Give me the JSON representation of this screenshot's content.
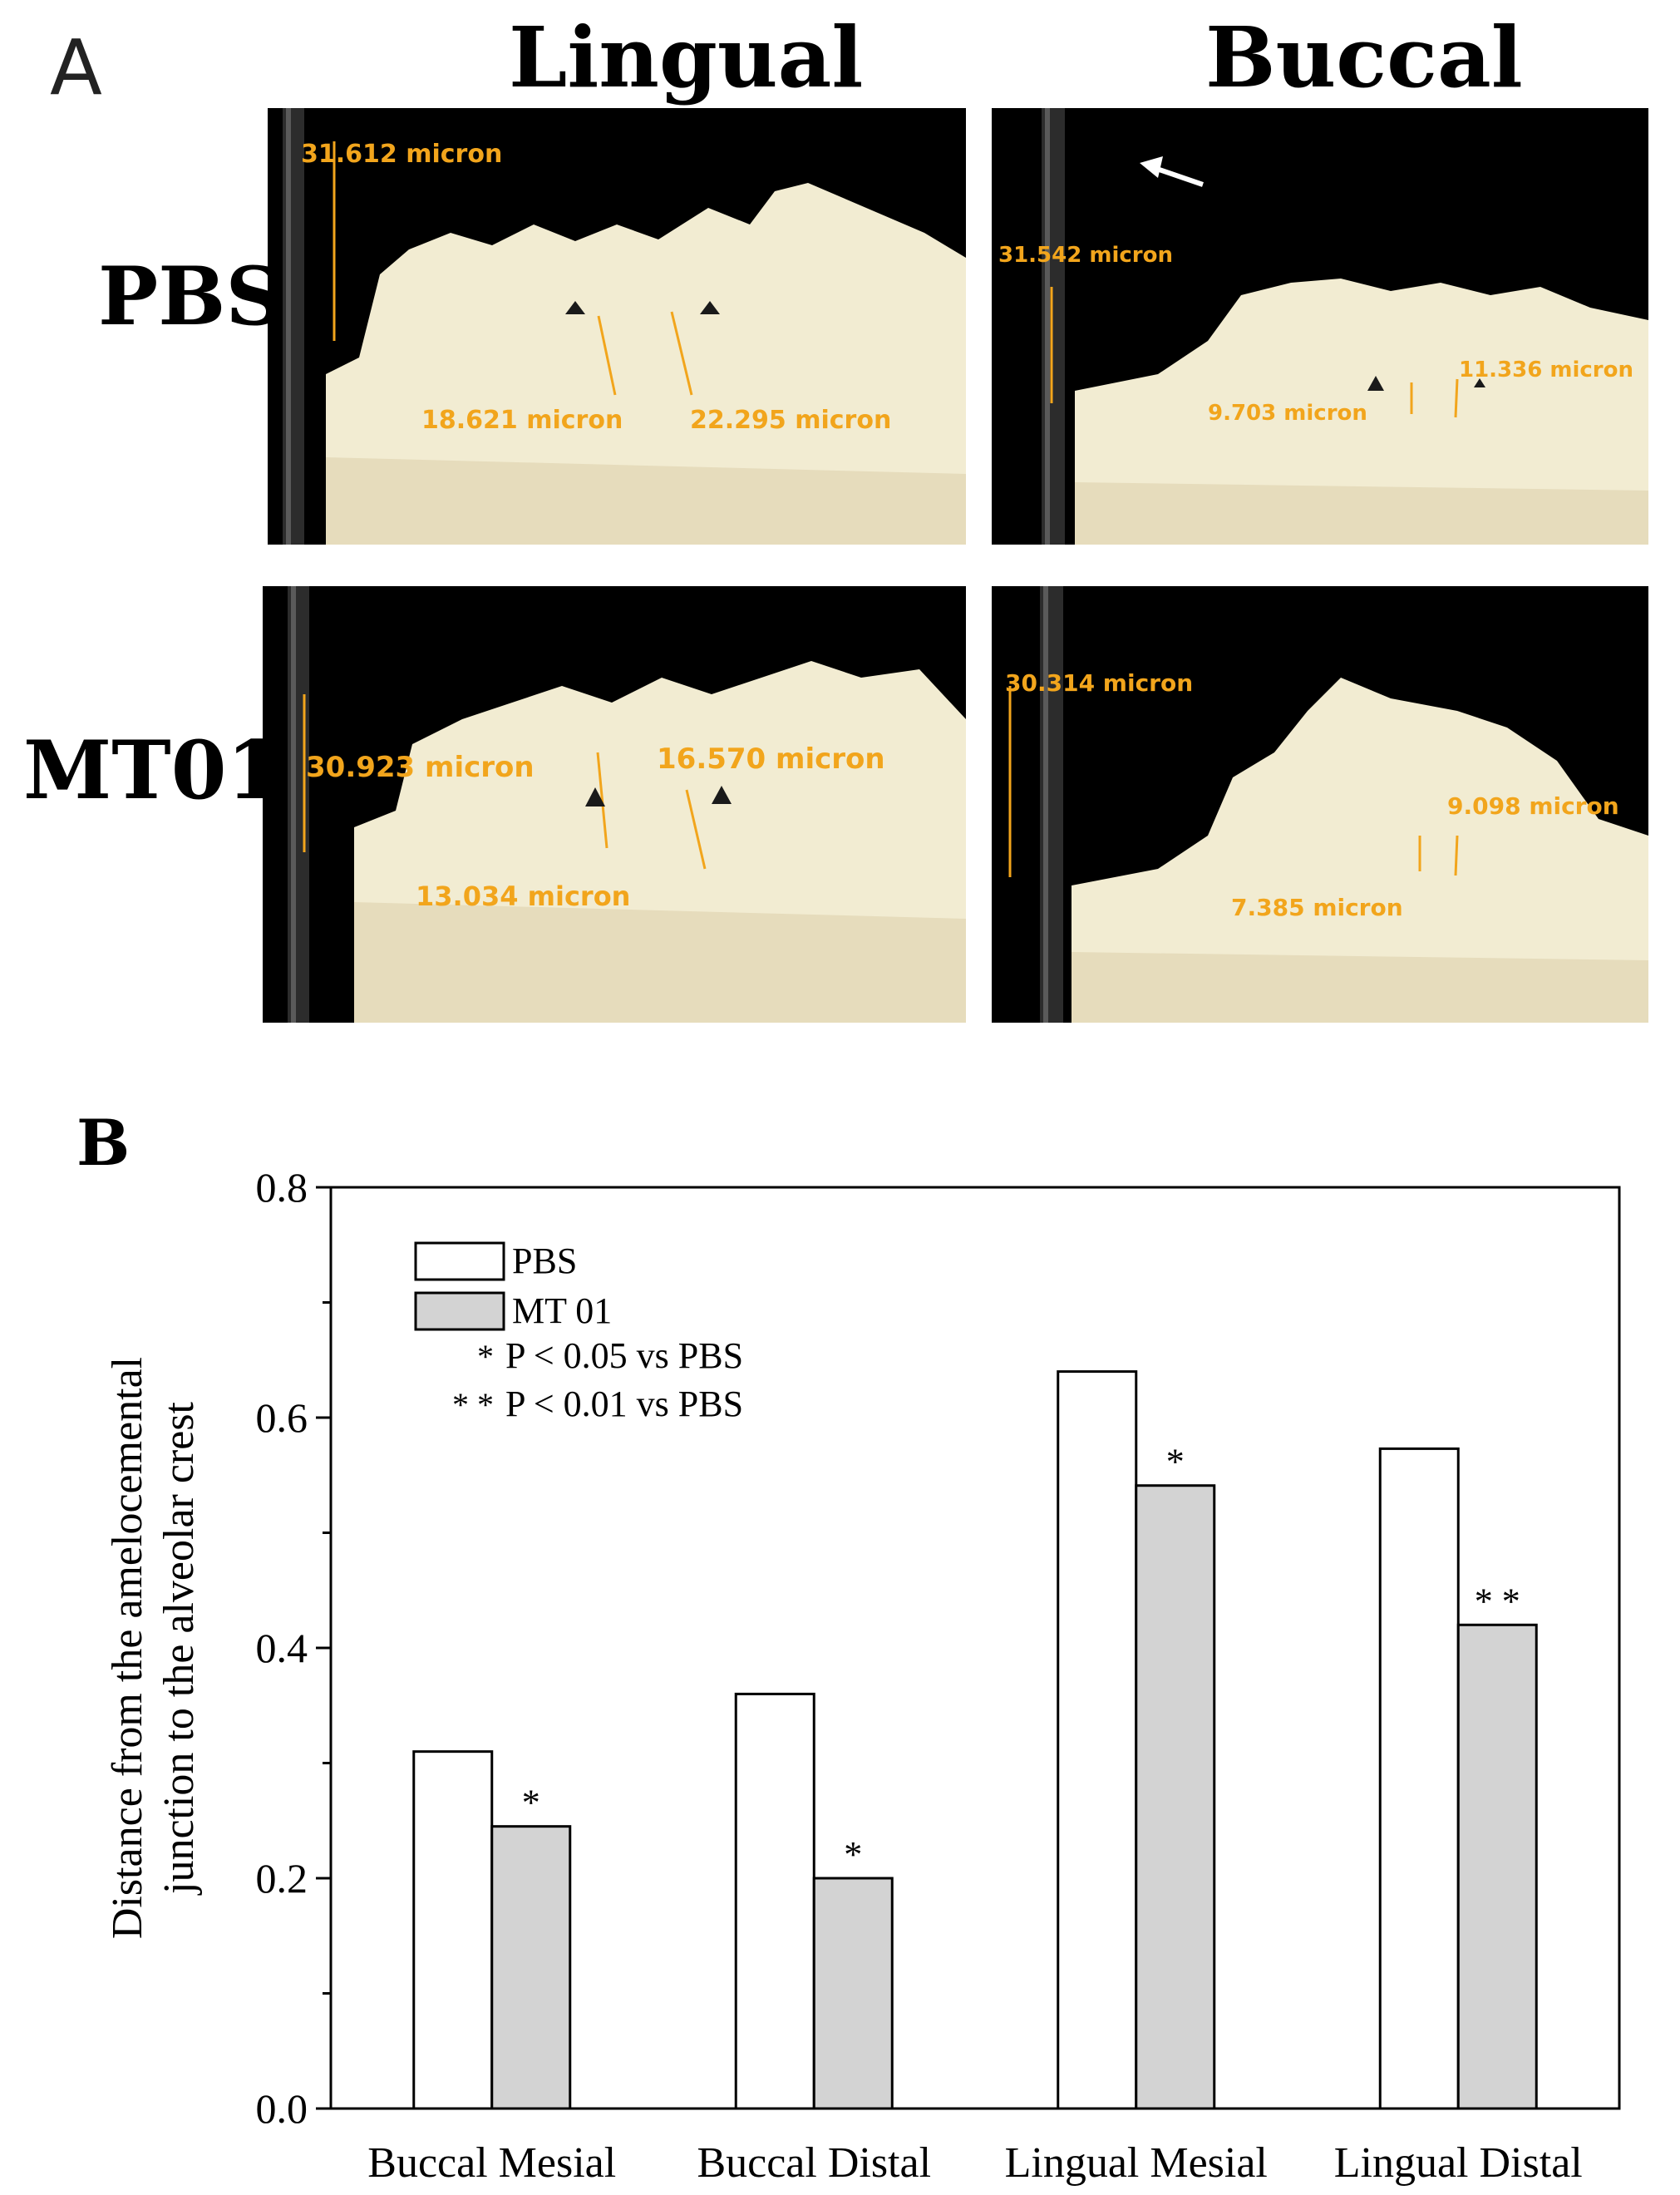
{
  "panel_a": {
    "letter": "A",
    "col_titles": [
      "Lingual",
      "Buccal"
    ],
    "row_labels": [
      "PBS",
      "MT01"
    ],
    "measurements": {
      "pbs_lingual": [
        "31.612 micron",
        "18.621 micron",
        "22.295 micron"
      ],
      "pbs_buccal": [
        "31.542 micron",
        "9.703 micron",
        "11.336 micron"
      ],
      "mt01_lingual": [
        "30.923 micron",
        "16.570 micron",
        "13.034 micron"
      ],
      "mt01_buccal": [
        "30.314 micron",
        "9.098 micron",
        "7.385 micron"
      ]
    },
    "photo_bg": "#000000",
    "tissue_color": "#f2ecd2",
    "label_color": "#f2a51c"
  },
  "panel_b": {
    "letter": "B"
  },
  "chart_data": {
    "type": "bar",
    "categories": [
      "Buccal Mesial",
      "Buccal Distal",
      "Lingual Mesial",
      "Lingual Distal"
    ],
    "series": [
      {
        "name": "PBS",
        "values": [
          0.31,
          0.36,
          0.64,
          0.573
        ],
        "color": "#ffffff"
      },
      {
        "name": "MT 01",
        "values": [
          0.245,
          0.2,
          0.541,
          0.42
        ],
        "color": "#d3d3d3"
      }
    ],
    "significance": [
      "*",
      "*",
      "*",
      "* *"
    ],
    "legend_notes": [
      {
        "mark": "*",
        "text": "P < 0.05 vs PBS"
      },
      {
        "mark": "* *",
        "text": "P < 0.01 vs PBS"
      }
    ],
    "ylabel": [
      "Distance from the amelocemental",
      "junction to the alveolar crest"
    ],
    "xlabel": "",
    "ylim": [
      0,
      0.8
    ],
    "yticks": [
      "0.0",
      "0.2",
      "0.4",
      "0.6",
      "0.8"
    ],
    "legend_position": "top-left",
    "grid": false
  }
}
